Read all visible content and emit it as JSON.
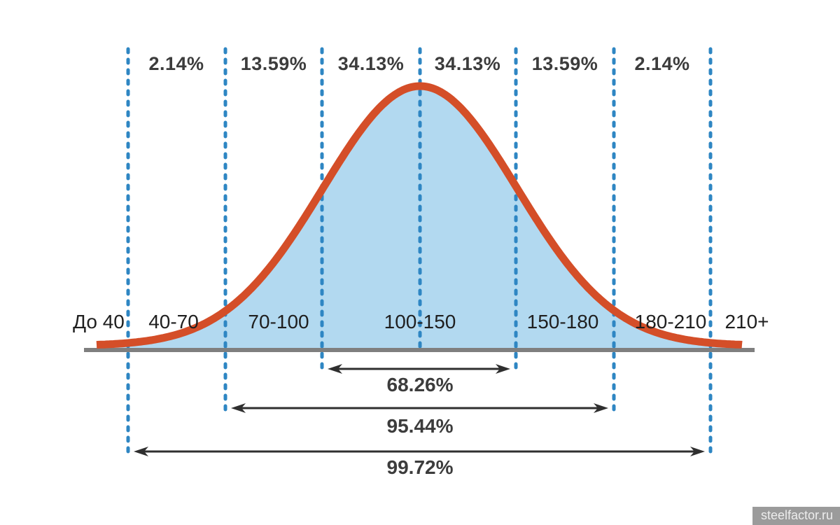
{
  "chart_data": {
    "type": "area",
    "subtype": "normal-distribution-bell-curve",
    "title": "",
    "legend": "none",
    "grid": "off",
    "region_percentages": [
      {
        "label": "2.14%",
        "value": 2.14
      },
      {
        "label": "13.59%",
        "value": 13.59
      },
      {
        "label": "34.13%",
        "value": 34.13
      },
      {
        "label": "34.13%",
        "value": 34.13
      },
      {
        "label": "13.59%",
        "value": 13.59
      },
      {
        "label": "2.14%",
        "value": 2.14
      }
    ],
    "x_intervals": [
      {
        "label": "До 40"
      },
      {
        "label": "40-70"
      },
      {
        "label": "70-100"
      },
      {
        "label": "100-150"
      },
      {
        "label": "150-180"
      },
      {
        "label": "180-210"
      },
      {
        "label": "210+"
      }
    ],
    "cumulative_ranges": [
      {
        "label": "68.26%",
        "value": 68.26
      },
      {
        "label": "95.44%",
        "value": 95.44
      },
      {
        "label": "99.72%",
        "value": 99.72
      }
    ],
    "colors": {
      "curve": "#d44e28",
      "fill": "#b2d9f0",
      "dashed_line": "#2e86c3",
      "baseline": "#7f7f7f",
      "arrow": "#2f2f2f",
      "percent_text": "#3c3c3c",
      "interval_text": "#1f1f1f",
      "watermark_bg": "#9b9b9b",
      "watermark_text": "#ededed"
    }
  },
  "watermark": {
    "label": "steelfactor.ru"
  }
}
